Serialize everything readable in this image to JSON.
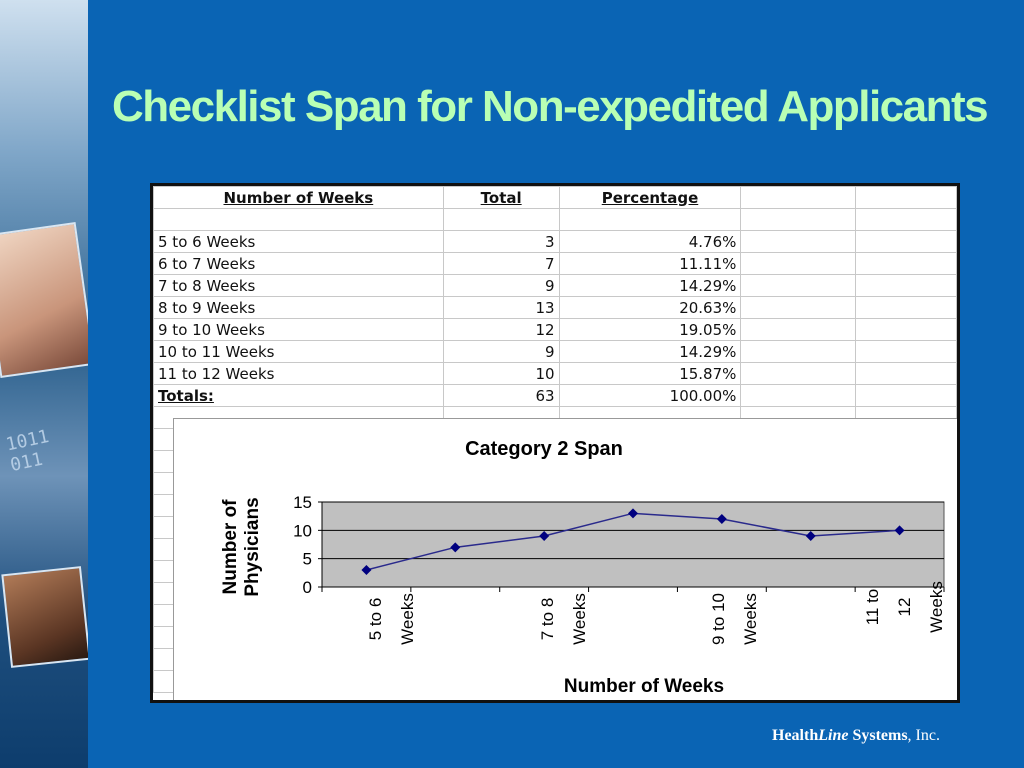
{
  "slide": {
    "title": "Checklist Span for Non-expedited Applicants",
    "footer": {
      "brand_bold_1": "Health",
      "brand_italic": "Line",
      "brand_bold_2": " Systems",
      "brand_suffix": ", Inc."
    },
    "side_digits": [
      "1011",
      "011"
    ]
  },
  "table": {
    "headers": [
      "Number of Weeks",
      "Total",
      "Percentage"
    ],
    "rows": [
      {
        "label": "5 to 6 Weeks",
        "total": "3",
        "pct": "4.76%"
      },
      {
        "label": "6 to 7 Weeks",
        "total": "7",
        "pct": "11.11%"
      },
      {
        "label": "7 to 8 Weeks",
        "total": "9",
        "pct": "14.29%"
      },
      {
        "label": "8 to 9 Weeks",
        "total": "13",
        "pct": "20.63%"
      },
      {
        "label": "9 to 10 Weeks",
        "total": "12",
        "pct": "19.05%"
      },
      {
        "label": "10 to 11 Weeks",
        "total": "9",
        "pct": "14.29%"
      },
      {
        "label": "11 to 12 Weeks",
        "total": "10",
        "pct": "15.87%"
      }
    ],
    "totals": {
      "label": "Totals:",
      "total": "63",
      "pct": "100.00%"
    }
  },
  "chart_data": {
    "type": "line",
    "title": "Category 2 Span",
    "xlabel": "Number of Weeks",
    "ylabel": "Number of Physicians",
    "categories": [
      "5 to 6 Weeks",
      "6 to 7 Weeks",
      "7 to 8 Weeks",
      "8 to 9 Weeks",
      "9 to 10 Weeks",
      "10 to 11 Weeks",
      "11 to 12 Weeks"
    ],
    "visible_tick_labels": [
      [
        "5 to 6",
        "Weeks"
      ],
      [
        "7 to 8",
        "Weeks"
      ],
      [
        "9 to 10",
        "Weeks"
      ],
      [
        "11 to",
        "12",
        "Weeks"
      ]
    ],
    "values": [
      3,
      7,
      9,
      13,
      12,
      9,
      10
    ],
    "ylim": [
      0,
      15
    ],
    "yticks": [
      0,
      5,
      10,
      15
    ],
    "grid": true,
    "plot_background": "#c0c0c0",
    "line_color": "#2a2a8c",
    "marker_color": "#00007f"
  }
}
